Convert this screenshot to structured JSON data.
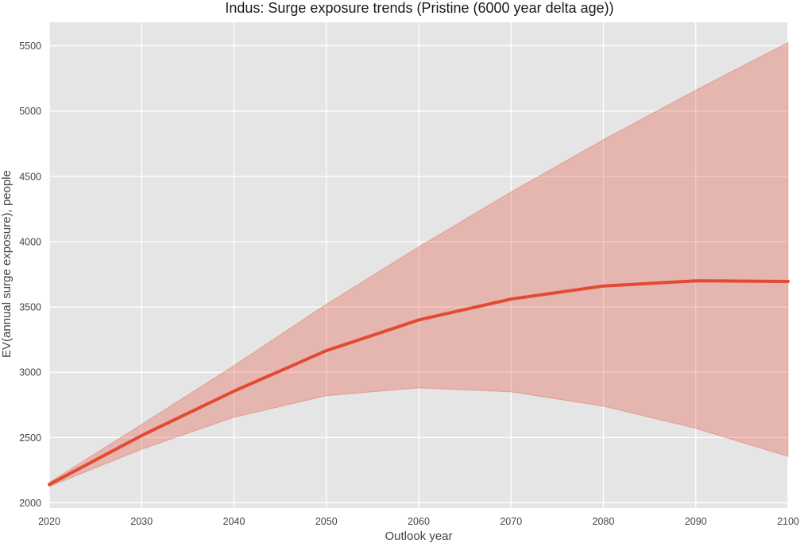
{
  "chart_data": {
    "type": "line",
    "title": "Indus: Surge exposure trends (Pristine (6000 year delta age))",
    "xlabel": "Outlook year",
    "ylabel": "EV(annual surge exposure), people",
    "xlim": [
      2020,
      2100
    ],
    "ylim": [
      1960,
      5680
    ],
    "x_ticks": [
      2020,
      2030,
      2040,
      2050,
      2060,
      2070,
      2080,
      2090,
      2100
    ],
    "y_ticks": [
      2000,
      2500,
      3000,
      3500,
      4000,
      4500,
      5000,
      5500
    ],
    "grid": true,
    "legend": "none",
    "colors": {
      "background": "#e5e5e5",
      "grid": "#ffffff",
      "line": "#e24a33",
      "band": "#e24a33"
    },
    "x": [
      2020,
      2030,
      2040,
      2050,
      2060,
      2070,
      2080,
      2090,
      2100
    ],
    "series": [
      {
        "values": [
          2140,
          2515,
          2855,
          3165,
          3400,
          3560,
          3660,
          3700,
          3695
        ]
      }
    ],
    "band": {
      "lower": [
        2125,
        2410,
        2655,
        2820,
        2880,
        2850,
        2740,
        2570,
        2355
      ],
      "upper": [
        2155,
        2600,
        3050,
        3520,
        3960,
        4380,
        4780,
        5160,
        5525
      ]
    }
  }
}
